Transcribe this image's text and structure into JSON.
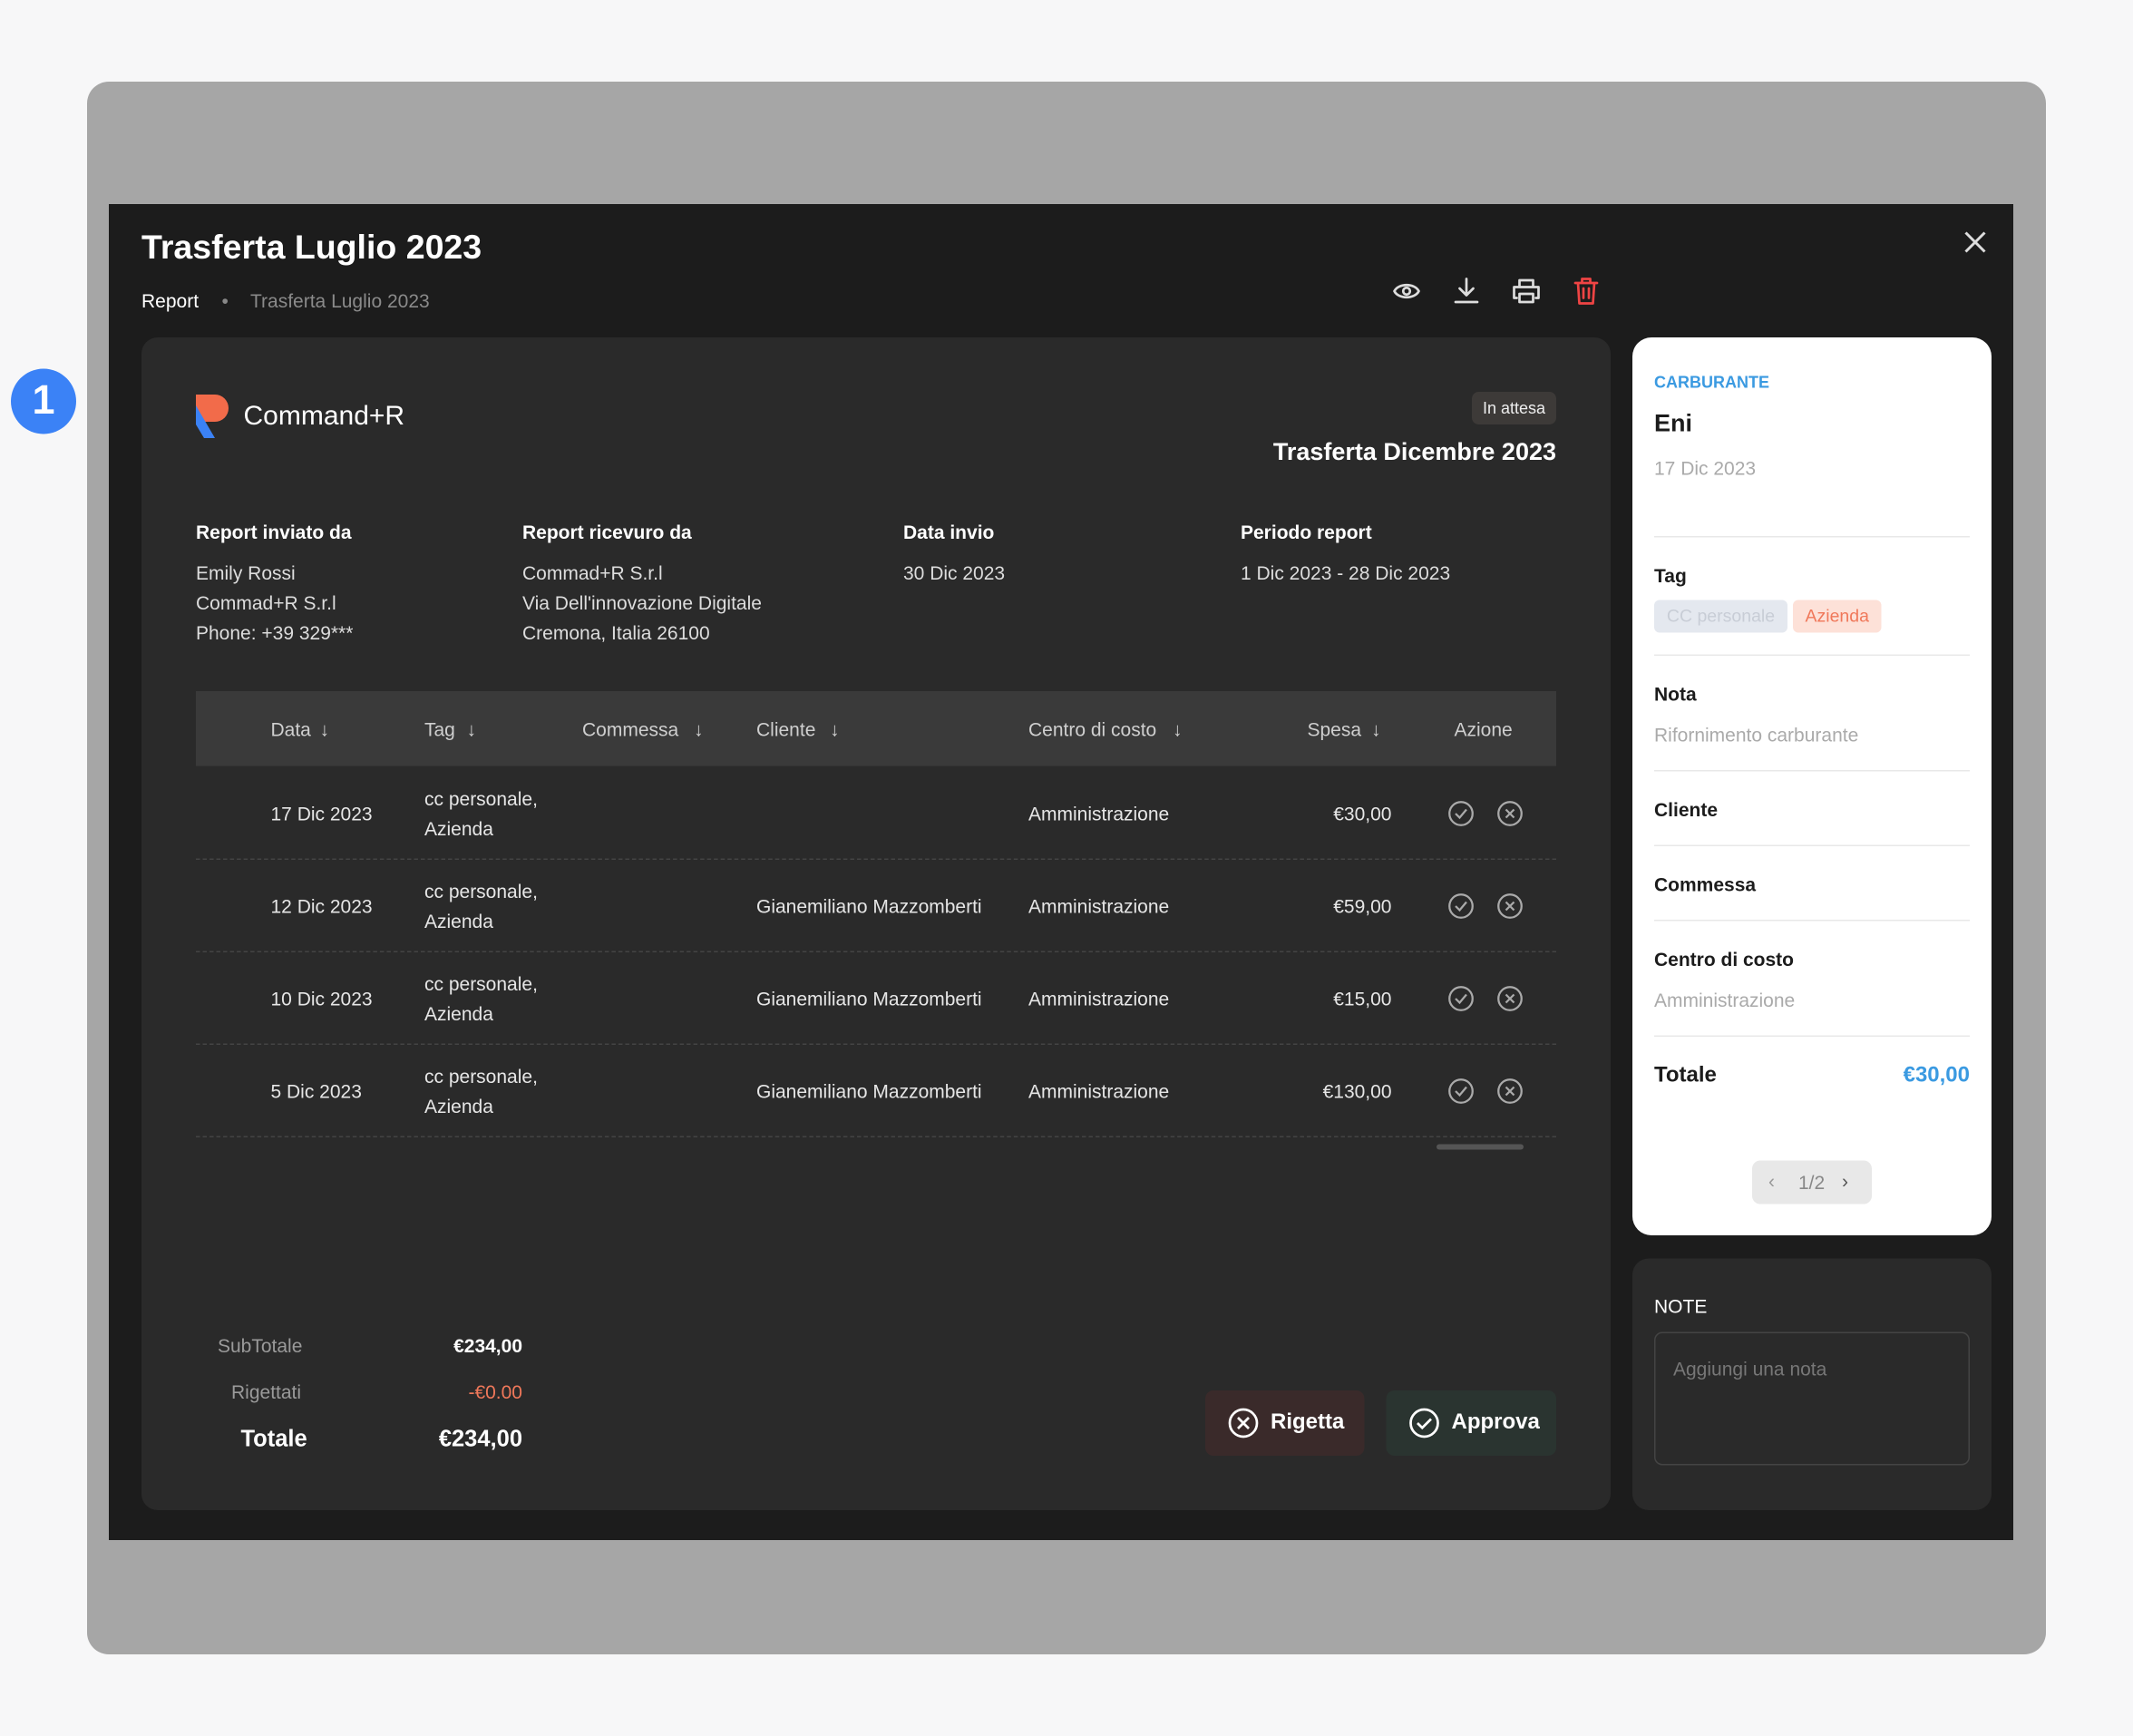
{
  "marker": "1",
  "modal": {
    "title": "Trasferta Luglio 2023",
    "breadcrumb": [
      "Report",
      "Trasferta Luglio 2023"
    ]
  },
  "document": {
    "brand": "Command+R",
    "status": "In attesa",
    "title": "Trasferta Dicembre 2023",
    "info": [
      {
        "label": "Report inviato da",
        "lines": [
          "Emily Rossi",
          "Commad+R S.r.l",
          "Phone: +39 329***"
        ]
      },
      {
        "label": "Report ricevuro da",
        "lines": [
          "Commad+R S.r.l",
          "Via Dell'innovazione Digitale",
          "Cremona, Italia 26100"
        ]
      },
      {
        "label": "Data invio",
        "lines": [
          "30 Dic 2023"
        ]
      },
      {
        "label": "Periodo report",
        "lines": [
          "1 Dic 2023 - 28 Dic 2023"
        ]
      }
    ]
  },
  "table": {
    "headers": [
      "Data",
      "Tag",
      "Commessa",
      "Cliente",
      "Centro di costo",
      "Spesa",
      "Azione"
    ],
    "rows": [
      {
        "data": "17 Dic 2023",
        "tag": [
          "cc personale,",
          "Azienda"
        ],
        "cliente": "",
        "centro": "Amministrazione",
        "spesa": "€30,00"
      },
      {
        "data": "12 Dic 2023",
        "tag": [
          "cc personale,",
          "Azienda"
        ],
        "cliente": "Gianemiliano Mazzomberti",
        "centro": "Amministrazione",
        "spesa": "€59,00"
      },
      {
        "data": "10 Dic 2023",
        "tag": [
          "cc personale,",
          "Azienda"
        ],
        "cliente": "Gianemiliano Mazzomberti",
        "centro": "Amministrazione",
        "spesa": "€15,00"
      },
      {
        "data": "5 Dic 2023",
        "tag": [
          "cc personale,",
          "Azienda"
        ],
        "cliente": "Gianemiliano Mazzomberti",
        "centro": "Amministrazione",
        "spesa": "€130,00"
      }
    ]
  },
  "totals": {
    "subtotal_label": "SubTotale",
    "subtotal": "€234,00",
    "rejected_label": "Rigettati",
    "rejected": "-€0.00",
    "total_label": "Totale",
    "total": "€234,00"
  },
  "buttons": {
    "reject": "Rigetta",
    "approve": "Approva"
  },
  "detail": {
    "category": "CARBURANTE",
    "name": "Eni",
    "date": "17 Dic 2023",
    "tag_label": "Tag",
    "tags": [
      "CC personale",
      "Azienda"
    ],
    "nota_label": "Nota",
    "nota": "Rifornimento carburante",
    "cliente_label": "Cliente",
    "commessa_label": "Commessa",
    "centro_label": "Centro di costo",
    "centro": "Amministrazione",
    "totale_label": "Totale",
    "totale": "€30,00",
    "pager": "1/2"
  },
  "notes": {
    "title": "NOTE",
    "placeholder": "Aggiungi una nota"
  }
}
